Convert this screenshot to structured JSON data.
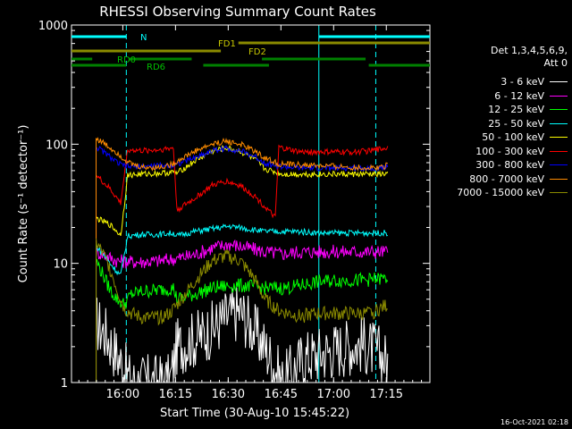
{
  "chart_data": {
    "type": "line",
    "title": "RHESSI Observing Summary Count Rates",
    "xlabel": "Start Time (30-Aug-10 15:45:22)",
    "ylabel": "Count Rate (s⁻¹ detector⁻¹)",
    "x_unit": "minutes after 15:45:22",
    "xlim": [
      0,
      102
    ],
    "ylim": [
      1,
      1000
    ],
    "yscale": "log",
    "x_ticks": [
      {
        "label": "16:00",
        "x": 14.6
      },
      {
        "label": "16:15",
        "x": 29.6
      },
      {
        "label": "16:30",
        "x": 44.6
      },
      {
        "label": "16:45",
        "x": 59.6
      },
      {
        "label": "17:00",
        "x": 74.6
      },
      {
        "label": "17:15",
        "x": 89.6
      }
    ],
    "y_ticks": [
      {
        "label": "1",
        "y": 1
      },
      {
        "label": "10",
        "y": 10
      },
      {
        "label": "100",
        "y": 100
      },
      {
        "label": "1000",
        "y": 1000
      }
    ],
    "legend_header": [
      "Det 1,3,4,5,6,9,",
      "Att 0"
    ],
    "series": [
      {
        "name": "3 - 6 keV",
        "color": "#ffffff",
        "values": [
          [
            7,
            3.2
          ],
          [
            10,
            2.5
          ],
          [
            14,
            1.5
          ],
          [
            17,
            1.0
          ],
          [
            28,
            1.0
          ],
          [
            30,
            2.0
          ],
          [
            35,
            2.3
          ],
          [
            40,
            2.8
          ],
          [
            44,
            3.5
          ],
          [
            48,
            4.0
          ],
          [
            51,
            3.0
          ],
          [
            55,
            2.0
          ],
          [
            60,
            1.0
          ],
          [
            66,
            1.6
          ],
          [
            72,
            1.8
          ],
          [
            78,
            2.0
          ],
          [
            83,
            2.1
          ],
          [
            87,
            1.8
          ],
          [
            90,
            1.5
          ]
        ]
      },
      {
        "name": "6 - 12 keV",
        "color": "#ff00ff",
        "values": [
          [
            7,
            12.5
          ],
          [
            10,
            11.5
          ],
          [
            13,
            10.5
          ],
          [
            17,
            10.3
          ],
          [
            20,
            10.3
          ],
          [
            25,
            10.5
          ],
          [
            30,
            11.0
          ],
          [
            35,
            11.8
          ],
          [
            40,
            13.5
          ],
          [
            45,
            14.5
          ],
          [
            50,
            13.5
          ],
          [
            55,
            12.5
          ],
          [
            60,
            12.0
          ],
          [
            65,
            12.5
          ],
          [
            70,
            12.5
          ],
          [
            75,
            12.5
          ],
          [
            80,
            12.5
          ],
          [
            85,
            12.5
          ],
          [
            90,
            12.5
          ]
        ]
      },
      {
        "name": "12 - 25 keV",
        "color": "#00ff00",
        "values": [
          [
            7,
            10.5
          ],
          [
            9,
            8.0
          ],
          [
            11,
            6.0
          ],
          [
            13,
            5.0
          ],
          [
            15,
            4.5
          ],
          [
            17,
            5.5
          ],
          [
            20,
            5.8
          ],
          [
            25,
            6.0
          ],
          [
            29,
            6.2
          ],
          [
            30,
            5.0
          ],
          [
            35,
            5.5
          ],
          [
            40,
            6.2
          ],
          [
            45,
            6.5
          ],
          [
            50,
            6.5
          ],
          [
            55,
            6.2
          ],
          [
            60,
            6.2
          ],
          [
            65,
            6.5
          ],
          [
            70,
            7.0
          ],
          [
            75,
            7.2
          ],
          [
            80,
            7.2
          ],
          [
            85,
            7.3
          ],
          [
            90,
            7.5
          ]
        ]
      },
      {
        "name": "25 - 50 keV",
        "color": "#00ffff",
        "values": [
          [
            7,
            14.0
          ],
          [
            9,
            12.0
          ],
          [
            11,
            10.0
          ],
          [
            13,
            8.5
          ],
          [
            14,
            8.0
          ],
          [
            16,
            17.0
          ],
          [
            20,
            17.5
          ],
          [
            25,
            17.5
          ],
          [
            29,
            18.0
          ],
          [
            30,
            17.0
          ],
          [
            35,
            18.5
          ],
          [
            40,
            19.5
          ],
          [
            45,
            20.5
          ],
          [
            50,
            19.5
          ],
          [
            55,
            18.5
          ],
          [
            60,
            18.5
          ],
          [
            65,
            18.5
          ],
          [
            70,
            18.0
          ],
          [
            75,
            18.0
          ],
          [
            80,
            18.0
          ],
          [
            85,
            18.0
          ],
          [
            90,
            18.0
          ]
        ]
      },
      {
        "name": "50 - 100 keV",
        "color": "#ffff00",
        "values": [
          [
            7,
            24.0
          ],
          [
            9,
            22.5
          ],
          [
            11,
            21.0
          ],
          [
            13,
            18.5
          ],
          [
            14,
            17.0
          ],
          [
            16,
            55.0
          ],
          [
            20,
            56.0
          ],
          [
            25,
            57.0
          ],
          [
            29,
            58.0
          ],
          [
            30,
            57.0
          ],
          [
            35,
            72.0
          ],
          [
            40,
            87.0
          ],
          [
            44,
            93.0
          ],
          [
            48,
            87.0
          ],
          [
            52,
            75.0
          ],
          [
            55,
            62.0
          ],
          [
            60,
            56.0
          ],
          [
            65,
            56.0
          ],
          [
            70,
            56.0
          ],
          [
            75,
            56.0
          ],
          [
            80,
            56.0
          ],
          [
            85,
            56.0
          ],
          [
            90,
            56.0
          ]
        ]
      },
      {
        "name": "100 - 300 keV",
        "color": "#ff0000",
        "values": [
          [
            7,
            55.0
          ],
          [
            9,
            48.0
          ],
          [
            11,
            42.0
          ],
          [
            13,
            35.0
          ],
          [
            14,
            32.0
          ],
          [
            16,
            90.0
          ],
          [
            20,
            88.0
          ],
          [
            25,
            90.0
          ],
          [
            29,
            93.0
          ],
          [
            30,
            28.0
          ],
          [
            35,
            35.0
          ],
          [
            40,
            45.0
          ],
          [
            44,
            49.0
          ],
          [
            48,
            45.0
          ],
          [
            52,
            37.0
          ],
          [
            55,
            30.0
          ],
          [
            58,
            24.0
          ],
          [
            59,
            94.0
          ],
          [
            65,
            86.0
          ],
          [
            70,
            86.0
          ],
          [
            75,
            86.0
          ],
          [
            80,
            86.0
          ],
          [
            85,
            88.0
          ],
          [
            90,
            94.0
          ]
        ]
      },
      {
        "name": "300 - 800 keV",
        "color": "#0000ff",
        "values": [
          [
            7,
            95.0
          ],
          [
            9,
            87.0
          ],
          [
            11,
            78.0
          ],
          [
            13,
            70.0
          ],
          [
            14,
            67.0
          ],
          [
            16,
            65.0
          ],
          [
            20,
            65.0
          ],
          [
            25,
            66.0
          ],
          [
            29,
            67.0
          ],
          [
            30,
            68.0
          ],
          [
            35,
            77.0
          ],
          [
            40,
            88.0
          ],
          [
            44,
            92.0
          ],
          [
            48,
            88.0
          ],
          [
            52,
            79.0
          ],
          [
            55,
            70.0
          ],
          [
            59,
            65.0
          ],
          [
            65,
            63.0
          ],
          [
            70,
            63.0
          ],
          [
            75,
            63.0
          ],
          [
            80,
            63.0
          ],
          [
            85,
            63.0
          ],
          [
            90,
            64.0
          ]
        ]
      },
      {
        "name": "800 - 7000 keV",
        "color": "#ff8c00",
        "values": [
          [
            7,
            112.0
          ],
          [
            9,
            103.0
          ],
          [
            11,
            93.0
          ],
          [
            13,
            85.0
          ],
          [
            15,
            75.0
          ],
          [
            17,
            68.0
          ],
          [
            20,
            64.0
          ],
          [
            25,
            64.0
          ],
          [
            29,
            68.0
          ],
          [
            30,
            72.0
          ],
          [
            35,
            87.0
          ],
          [
            40,
            100.0
          ],
          [
            44,
            106.0
          ],
          [
            48,
            100.0
          ],
          [
            52,
            88.0
          ],
          [
            55,
            77.0
          ],
          [
            59,
            68.0
          ],
          [
            65,
            67.0
          ],
          [
            70,
            66.0
          ],
          [
            75,
            65.0
          ],
          [
            80,
            64.0
          ],
          [
            85,
            63.0
          ],
          [
            89,
            65.0
          ],
          [
            90,
            70.0
          ]
        ]
      },
      {
        "name": "7000 - 15000 keV",
        "color": "#8b8b00",
        "values": [
          [
            7,
            15.0
          ],
          [
            9,
            12.0
          ],
          [
            11,
            9.0
          ],
          [
            13,
            6.0
          ],
          [
            15,
            4.2
          ],
          [
            17,
            3.8
          ],
          [
            20,
            3.5
          ],
          [
            25,
            3.5
          ],
          [
            28,
            3.8
          ],
          [
            30,
            4.5
          ],
          [
            35,
            7.0
          ],
          [
            40,
            10.5
          ],
          [
            44,
            11.5
          ],
          [
            48,
            10.5
          ],
          [
            52,
            7.5
          ],
          [
            55,
            5.0
          ],
          [
            59,
            4.0
          ],
          [
            65,
            3.6
          ],
          [
            70,
            3.8
          ],
          [
            75,
            3.8
          ],
          [
            80,
            3.8
          ],
          [
            85,
            3.8
          ],
          [
            90,
            4.5
          ]
        ]
      }
    ],
    "flag_bars": [
      {
        "label": "N",
        "color": "#00ffff",
        "segments": [
          [
            0,
            15.6
          ],
          [
            70.4,
            102
          ]
        ]
      },
      {
        "label": "FD1",
        "color": "#8b8b00",
        "segments": [
          [
            47.5,
            102
          ]
        ]
      },
      {
        "label": "FD2",
        "color": "#8b8b00",
        "segments": [
          [
            0,
            42.5
          ]
        ]
      },
      {
        "label": "RD0",
        "color": "#008000",
        "segments": [
          [
            0,
            5.9
          ],
          [
            16.5,
            34.2
          ],
          [
            54.2,
            83.7
          ]
        ]
      },
      {
        "label": "RD6",
        "color": "#008000",
        "segments": [
          [
            0,
            15.6
          ],
          [
            37.5,
            56.2
          ],
          [
            84.6,
            102
          ]
        ]
      }
    ],
    "vlines": [
      {
        "x": 0,
        "color": "#00ffff",
        "style": "solid"
      },
      {
        "x": 15.6,
        "color": "#00ffff",
        "style": "dashed"
      },
      {
        "x": 70.4,
        "color": "#00ffff",
        "style": "solid"
      },
      {
        "x": 86.6,
        "color": "#00ffff",
        "style": "dashed"
      }
    ],
    "grid": false,
    "legend_position": "right"
  },
  "timestamp": "16-Oct-2021 02:18"
}
